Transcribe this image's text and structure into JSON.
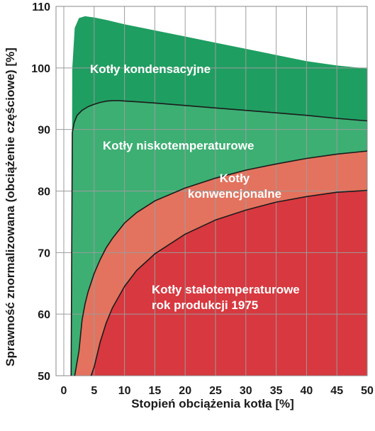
{
  "chart_data": {
    "type": "area",
    "xlabel": "Stopień obciążenia kotła [%]",
    "ylabel": "Sprawność znormalizowana (obciążenie częściowe) [%]",
    "xlim": [
      0,
      50
    ],
    "ylim": [
      50,
      110
    ],
    "x_ticks": [
      "0",
      "5",
      "10",
      "15",
      "20",
      "25",
      "30",
      "35",
      "40",
      "45",
      "50"
    ],
    "y_ticks": [
      "50",
      "60",
      "70",
      "80",
      "90",
      "100",
      "110"
    ],
    "grid": true,
    "colors": {
      "kondensacyjne": "#1f9e61",
      "niskotemperaturowe": "#3daf73",
      "konwencjonalne": "#e3735e",
      "stalotemperaturowe": "#d8383f",
      "grid": "#9c9c9c",
      "boundary": "#1b1b1b"
    },
    "series": [
      {
        "name": "Kotły kondensacyjne",
        "label_lines": [
          "Kotły kondensacyjne"
        ],
        "x": [
          1.2,
          1.4,
          1.8,
          2.5,
          3.5,
          5,
          7,
          10,
          15,
          20,
          25,
          30,
          35,
          40,
          45,
          50
        ],
        "values": [
          50,
          100,
          106.5,
          108.1,
          108.4,
          108.2,
          107.8,
          107.1,
          106.1,
          105.1,
          104.1,
          103.1,
          102.1,
          101.1,
          100.4,
          99.9
        ]
      },
      {
        "name": "Kotły niskotemperaturowe",
        "label_lines": [
          "Kotły niskotemperaturowe"
        ],
        "x": [
          1.2,
          1.4,
          1.7,
          2.2,
          3,
          4,
          5,
          6,
          7,
          8,
          9,
          12,
          15,
          20,
          25,
          30,
          35,
          40,
          45,
          50
        ],
        "values": [
          50,
          89.5,
          91.1,
          92.3,
          93.1,
          93.7,
          94.1,
          94.4,
          94.6,
          94.7,
          94.7,
          94.5,
          94.3,
          93.9,
          93.5,
          93.1,
          92.7,
          92.3,
          91.8,
          91.4
        ]
      },
      {
        "name": "Kotły konwencjonalne",
        "label_lines": [
          "Kotły",
          "konwencjonalne"
        ],
        "x": [
          1.8,
          2.5,
          3,
          3.5,
          4,
          5,
          6,
          7,
          8,
          10,
          12,
          15,
          20,
          25,
          30,
          35,
          40,
          45,
          50
        ],
        "values": [
          50,
          54,
          59,
          61.7,
          63.6,
          66.6,
          68.9,
          70.8,
          72.3,
          74.8,
          76.5,
          78.4,
          80.5,
          82.1,
          83.4,
          84.4,
          85.3,
          86,
          86.5
        ]
      },
      {
        "name": "Kotły stałotemperaturowe rok produkcji 1975",
        "label_lines": [
          "Kotły stałotemperaturowe",
          "rok produkcji 1975"
        ],
        "x": [
          4.5,
          5,
          6,
          7,
          8,
          10,
          12,
          15,
          20,
          25,
          30,
          35,
          40,
          45,
          50
        ],
        "values": [
          50,
          51.4,
          55.5,
          58.6,
          61,
          64.5,
          67.1,
          69.8,
          73,
          75.3,
          76.9,
          78.2,
          79.1,
          79.8,
          80.1
        ]
      }
    ]
  }
}
